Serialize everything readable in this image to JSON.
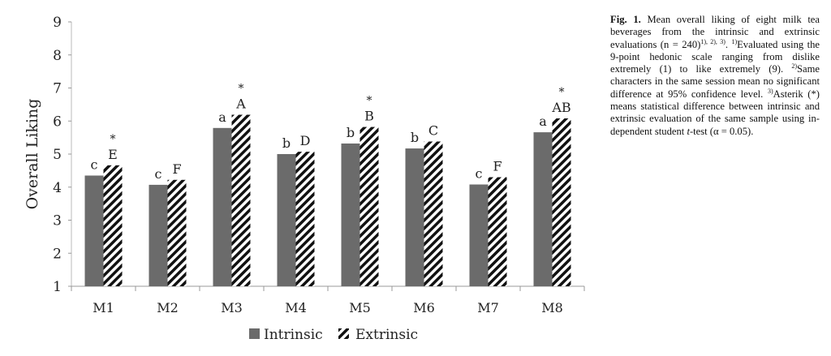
{
  "chart_data": {
    "type": "bar",
    "title": "",
    "xlabel": "",
    "ylabel": "Overall Liking",
    "ylim": [
      1,
      9
    ],
    "yticks": [
      "1",
      "2",
      "3",
      "4",
      "5",
      "6",
      "7",
      "8",
      "9"
    ],
    "categories": [
      "M1",
      "M2",
      "M3",
      "M4",
      "M5",
      "M6",
      "M7",
      "M8"
    ],
    "series": [
      {
        "name": "Intrinsic",
        "values": [
          4.35,
          4.07,
          5.79,
          5.0,
          5.32,
          5.17,
          4.08,
          5.66
        ],
        "labels": [
          "c",
          "c",
          "a",
          "b",
          "b",
          "b",
          "c",
          "a"
        ],
        "color": "#6b6b6b"
      },
      {
        "name": "Extrinsic",
        "values": [
          4.66,
          4.22,
          6.19,
          5.07,
          5.82,
          5.38,
          4.3,
          6.08
        ],
        "labels": [
          "E",
          "F",
          "A",
          "D",
          "B",
          "C",
          "F",
          "AB"
        ],
        "pattern": "hatched"
      }
    ],
    "significant": [
      true,
      false,
      true,
      false,
      true,
      false,
      false,
      true
    ],
    "significance_marker": "*",
    "legend": "bottom-center",
    "grid": false
  },
  "caption": {
    "fig": "Fig. 1.",
    "text1": " Mean overall liking of eight milk tea beverages from the intrinsic and extrinsic evaluations (n = 240)",
    "sup1": "1), 2), 3)",
    "text2": ". ",
    "sup2": "1)",
    "text3": "Evaluated using the 9-point hedonic scale ranging from dislike extremely (1) to like extremely (9). ",
    "sup3": "2)",
    "text4": "Same characters in the same session mean no significant difference at 95% con­fidence level. ",
    "sup4": "3)",
    "text5": "Asterik (*) means statistical difference between intrinsic and extrinsic evaluation of the same sample using in­dependent student ",
    "t": "t",
    "text6": "-test (α = 0.05)."
  }
}
